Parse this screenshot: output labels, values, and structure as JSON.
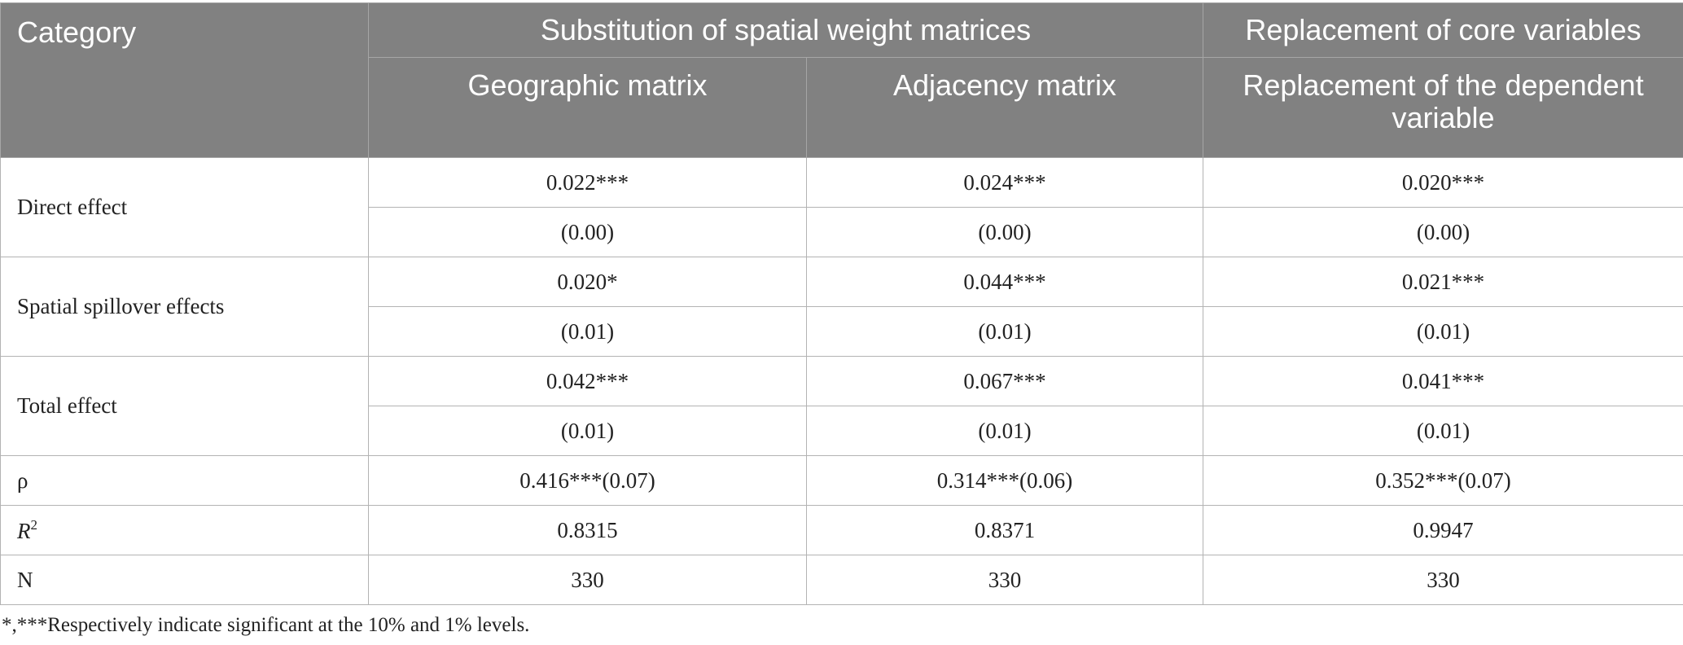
{
  "header": {
    "category": "Category",
    "group1": "Substitution of spatial weight matrices",
    "group2": "Replacement of core variables",
    "sub1": "Geographic matrix",
    "sub2": "Adjacency matrix",
    "sub3": "Replacement of the dependent variable"
  },
  "rows": {
    "direct": {
      "label": "Direct effect",
      "coef": [
        "0.022***",
        "0.024***",
        "0.020***"
      ],
      "se": [
        "(0.00)",
        "(0.00)",
        "(0.00)"
      ]
    },
    "spillover": {
      "label": "Spatial spillover effects",
      "coef": [
        "0.020*",
        "0.044***",
        "0.021***"
      ],
      "se": [
        "(0.01)",
        "(0.01)",
        "(0.01)"
      ]
    },
    "total": {
      "label": "Total effect",
      "coef": [
        "0.042***",
        "0.067***",
        "0.041***"
      ],
      "se": [
        "(0.01)",
        "(0.01)",
        "(0.01)"
      ]
    },
    "rho": {
      "label": "ρ",
      "values": [
        "0.416***(0.07)",
        "0.314***(0.06)",
        "0.352***(0.07)"
      ]
    },
    "r2": {
      "label": "R",
      "label_sup": "2",
      "values": [
        "0.8315",
        "0.8371",
        "0.9947"
      ]
    },
    "n": {
      "label": "N",
      "values": [
        "330",
        "330",
        "330"
      ]
    }
  },
  "footnote": "*,***Respectively indicate significant at the 10% and 1% levels."
}
